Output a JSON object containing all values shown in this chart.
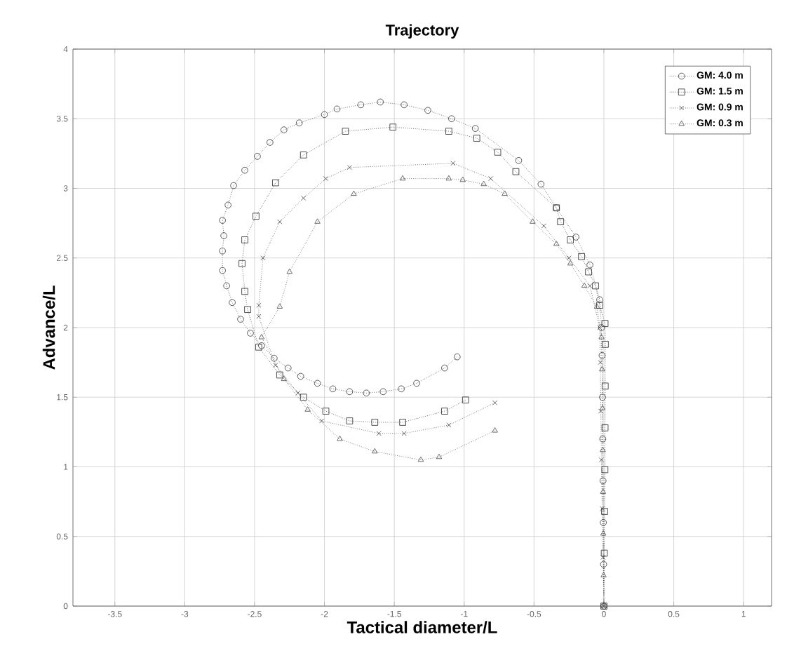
{
  "chart_data": {
    "type": "line",
    "title": "Trajectory",
    "xlabel": "Tactical diameter/L",
    "ylabel": "Advance/L",
    "xlim": [
      -3.8,
      1.2
    ],
    "ylim": [
      0,
      4
    ],
    "xticks": [
      -3.5,
      -3,
      -2.5,
      -2,
      -1.5,
      -1,
      -0.5,
      0,
      0.5,
      1
    ],
    "yticks": [
      0,
      0.5,
      1,
      1.5,
      2,
      2.5,
      3,
      3.5,
      4
    ],
    "grid": true,
    "legend": "top right",
    "line_style": "dotted",
    "series": [
      {
        "name": "GM: 4.0 m",
        "color": "#333333",
        "marker": "circle",
        "x": [
          0,
          -0.002,
          -0.004,
          -0.006,
          -0.008,
          -0.01,
          -0.013,
          -0.017,
          -0.03,
          -0.1,
          -0.2,
          -0.34,
          -0.45,
          -0.61,
          -0.92,
          -1.09,
          -1.26,
          -1.43,
          -1.6,
          -1.74,
          -1.91,
          -2.0,
          -2.18,
          -2.29,
          -2.39,
          -2.48,
          -2.57,
          -2.65,
          -2.69,
          -2.73,
          -2.72,
          -2.73,
          -2.73,
          -2.7,
          -2.66,
          -2.6,
          -2.53,
          -2.45,
          -2.36,
          -2.26,
          -2.17,
          -2.05,
          -1.94,
          -1.82,
          -1.7,
          -1.58,
          -1.45,
          -1.34,
          -1.14,
          -1.05
        ],
        "values": [
          0,
          0.3,
          0.6,
          0.9,
          1.2,
          1.5,
          1.8,
          2.0,
          2.2,
          2.45,
          2.65,
          2.86,
          3.03,
          3.2,
          3.43,
          3.5,
          3.56,
          3.6,
          3.62,
          3.6,
          3.57,
          3.53,
          3.47,
          3.42,
          3.33,
          3.23,
          3.13,
          3.02,
          2.88,
          2.77,
          2.66,
          2.55,
          2.41,
          2.3,
          2.18,
          2.06,
          1.96,
          1.87,
          1.78,
          1.71,
          1.65,
          1.6,
          1.56,
          1.54,
          1.53,
          1.54,
          1.56,
          1.6,
          1.71,
          1.79
        ]
      },
      {
        "name": "GM: 1.5 m",
        "color": "#262626",
        "marker": "square",
        "x": [
          0,
          0.003,
          0.005,
          0.007,
          0.008,
          0.009,
          0.01,
          0.008,
          -0.03,
          -0.06,
          -0.11,
          -0.16,
          -0.24,
          -0.31,
          -0.34,
          -0.63,
          -0.76,
          -0.91,
          -1.11,
          -1.51,
          -1.85,
          -2.15,
          -2.35,
          -2.49,
          -2.57,
          -2.59,
          -2.57,
          -2.55,
          -2.47,
          -2.32,
          -2.15,
          -1.99,
          -1.82,
          -1.64,
          -1.44,
          -1.14,
          -0.99
        ],
        "values": [
          0,
          0.38,
          0.68,
          0.98,
          1.28,
          1.58,
          1.88,
          2.03,
          2.16,
          2.3,
          2.4,
          2.51,
          2.63,
          2.76,
          2.86,
          3.12,
          3.26,
          3.36,
          3.41,
          3.44,
          3.41,
          3.24,
          3.04,
          2.8,
          2.63,
          2.46,
          2.26,
          2.13,
          1.86,
          1.66,
          1.5,
          1.4,
          1.33,
          1.32,
          1.32,
          1.4,
          1.48
        ]
      },
      {
        "name": "GM: 0.9 m",
        "color": "#3d3d3d",
        "marker": "cross",
        "x": [
          0,
          -0.006,
          -0.012,
          -0.018,
          -0.022,
          -0.025,
          -0.03,
          -0.1,
          -0.25,
          -0.43,
          -0.81,
          -1.08,
          -1.82,
          -1.99,
          -2.15,
          -2.32,
          -2.44,
          -2.47,
          -2.47,
          -2.35,
          -2.19,
          -2.02,
          -1.61,
          -1.43,
          -1.11,
          -0.78
        ],
        "values": [
          0,
          0.35,
          0.7,
          1.05,
          1.4,
          1.75,
          2.0,
          2.3,
          2.5,
          2.73,
          3.07,
          3.18,
          3.15,
          3.07,
          2.93,
          2.76,
          2.5,
          2.16,
          2.08,
          1.73,
          1.53,
          1.33,
          1.24,
          1.24,
          1.3,
          1.46
        ]
      },
      {
        "name": "GM: 0.3 m",
        "color": "#474747",
        "marker": "triangle",
        "x": [
          0,
          -0.002,
          -0.004,
          -0.006,
          -0.008,
          -0.01,
          -0.013,
          -0.017,
          -0.05,
          -0.14,
          -0.24,
          -0.34,
          -0.51,
          -0.71,
          -0.86,
          -1.01,
          -1.11,
          -1.44,
          -1.79,
          -2.05,
          -2.25,
          -2.32,
          -2.45,
          -2.29,
          -2.12,
          -1.89,
          -1.64,
          -1.31,
          -1.18,
          -0.78
        ],
        "values": [
          0,
          0.22,
          0.52,
          0.82,
          1.12,
          1.42,
          1.7,
          1.93,
          2.15,
          2.3,
          2.46,
          2.6,
          2.76,
          2.96,
          3.03,
          3.06,
          3.07,
          3.07,
          2.96,
          2.76,
          2.4,
          2.15,
          1.93,
          1.63,
          1.41,
          1.2,
          1.11,
          1.05,
          1.07,
          1.26
        ]
      }
    ]
  }
}
